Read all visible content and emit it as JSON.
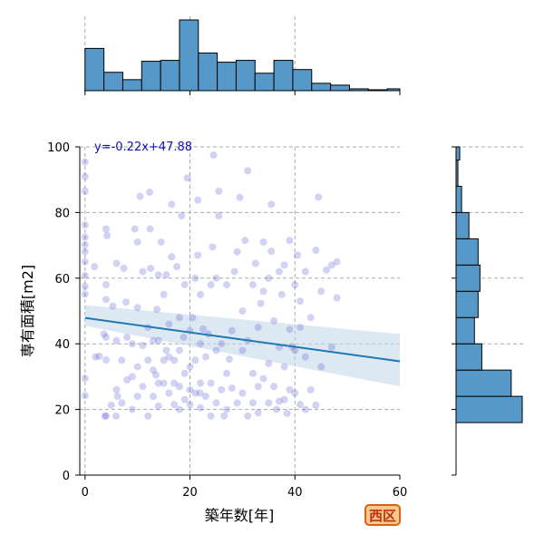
{
  "chart_data": {
    "type": "scatter",
    "title": "",
    "xlabel": "築年数[年]",
    "ylabel": "専有面積[m2]",
    "xlim": [
      -1,
      60
    ],
    "ylim": [
      0,
      100
    ],
    "xticks": [
      0,
      20,
      40,
      60
    ],
    "yticks": [
      0,
      20,
      40,
      60,
      80,
      100
    ],
    "grid": true,
    "regression": {
      "label": "y=-0.22x+47.88",
      "slope": -0.22,
      "intercept": 47.88,
      "ci_at_x0": [
        45.5,
        51.8
      ],
      "ci_at_x60": [
        27.0,
        43.0
      ]
    },
    "badge": "西区",
    "top_histogram": {
      "bin_edges": [
        0,
        3.6,
        7.2,
        10.8,
        14.4,
        18,
        21.6,
        25.2,
        28.8,
        32.4,
        36,
        39.6,
        43.2,
        46.8,
        50.4,
        54,
        57.6,
        60
      ],
      "counts": [
        46,
        20,
        12,
        32,
        33,
        77,
        41,
        31,
        33,
        19,
        33,
        23,
        8,
        6,
        2,
        1,
        2
      ]
    },
    "right_histogram": {
      "bin_edges": [
        16,
        24,
        32,
        40,
        48,
        56,
        64,
        72,
        80,
        88,
        96,
        100
      ],
      "counts": [
        36,
        30,
        14,
        10,
        12,
        13,
        12,
        7,
        3,
        1,
        2
      ]
    },
    "points": [
      [
        0,
        95.4
      ],
      [
        0,
        91
      ],
      [
        0,
        86.5
      ],
      [
        0,
        76.2
      ],
      [
        0,
        72.5
      ],
      [
        0,
        70.2
      ],
      [
        0,
        68.1
      ],
      [
        0,
        65
      ],
      [
        0,
        60.8
      ],
      [
        0,
        57.5
      ],
      [
        0,
        55.1
      ],
      [
        0,
        29.5
      ],
      [
        0,
        24.2
      ],
      [
        1.8,
        63.5
      ],
      [
        2,
        36
      ],
      [
        2.7,
        36.2
      ],
      [
        3.6,
        43
      ],
      [
        3.8,
        18
      ],
      [
        4,
        18
      ],
      [
        4,
        35.1
      ],
      [
        4,
        42
      ],
      [
        4,
        53.5
      ],
      [
        4,
        58
      ],
      [
        4,
        75
      ],
      [
        4.2,
        73
      ],
      [
        5,
        21.3
      ],
      [
        5.3,
        51.5
      ],
      [
        5.9,
        18
      ],
      [
        6,
        64.5
      ],
      [
        6,
        41
      ],
      [
        6,
        26
      ],
      [
        6.2,
        24
      ],
      [
        7,
        35
      ],
      [
        7,
        22
      ],
      [
        7.4,
        63
      ],
      [
        7.8,
        52.7
      ],
      [
        8,
        42
      ],
      [
        8,
        29
      ],
      [
        9,
        40
      ],
      [
        9,
        30
      ],
      [
        9,
        20
      ],
      [
        9.5,
        75
      ],
      [
        10,
        71
      ],
      [
        10,
        33
      ],
      [
        10,
        24
      ],
      [
        10,
        51
      ],
      [
        10.5,
        84.9
      ],
      [
        11,
        62
      ],
      [
        11,
        39.5
      ],
      [
        11,
        27
      ],
      [
        12,
        45
      ],
      [
        12,
        35
      ],
      [
        12,
        18
      ],
      [
        12.3,
        86.2
      ],
      [
        12.4,
        75
      ],
      [
        12.5,
        63
      ],
      [
        13,
        41
      ],
      [
        13,
        32
      ],
      [
        13,
        24
      ],
      [
        13.5,
        30.5
      ],
      [
        13.7,
        50.5
      ],
      [
        14,
        61
      ],
      [
        14,
        41
      ],
      [
        14,
        28
      ],
      [
        14,
        21
      ],
      [
        14.5,
        71
      ],
      [
        15,
        55
      ],
      [
        15,
        35
      ],
      [
        15,
        28
      ],
      [
        15.5,
        61
      ],
      [
        15.5,
        38
      ],
      [
        16,
        36
      ],
      [
        16,
        25
      ],
      [
        16,
        46
      ],
      [
        16.5,
        82.5
      ],
      [
        16.5,
        66.5
      ],
      [
        17,
        35
      ],
      [
        17,
        28
      ],
      [
        17,
        21.5
      ],
      [
        17.5,
        63.5
      ],
      [
        18,
        48
      ],
      [
        18,
        38
      ],
      [
        18,
        27
      ],
      [
        18,
        20
      ],
      [
        18.4,
        79
      ],
      [
        18.8,
        42
      ],
      [
        19,
        58
      ],
      [
        19,
        31
      ],
      [
        19,
        23
      ],
      [
        19.5,
        90.5
      ],
      [
        20,
        44
      ],
      [
        20,
        33
      ],
      [
        20,
        26
      ],
      [
        20,
        21.5
      ],
      [
        20.5,
        48
      ],
      [
        21,
        60
      ],
      [
        21,
        35
      ],
      [
        21,
        25
      ],
      [
        21.5,
        83.8
      ],
      [
        21.5,
        67
      ],
      [
        21.9,
        25
      ],
      [
        22,
        55
      ],
      [
        22,
        40
      ],
      [
        22,
        28
      ],
      [
        22,
        20.5
      ],
      [
        22.5,
        44.5
      ],
      [
        23,
        36
      ],
      [
        23,
        24
      ],
      [
        23.5,
        43
      ],
      [
        24,
        58
      ],
      [
        24,
        28
      ],
      [
        24,
        18
      ],
      [
        24.3,
        69.5
      ],
      [
        24.5,
        97.5
      ],
      [
        25,
        60
      ],
      [
        25,
        38
      ],
      [
        25,
        22
      ],
      [
        25.5,
        79
      ],
      [
        25.5,
        86.5
      ],
      [
        26,
        40
      ],
      [
        26,
        26
      ],
      [
        26.5,
        18
      ],
      [
        27,
        58
      ],
      [
        27,
        31
      ],
      [
        27,
        20
      ],
      [
        27.5,
        35.3
      ],
      [
        28,
        44
      ],
      [
        28,
        26.5
      ],
      [
        28.5,
        62
      ],
      [
        29,
        68
      ],
      [
        29,
        22
      ],
      [
        29.5,
        84.6
      ],
      [
        30,
        50
      ],
      [
        30,
        38
      ],
      [
        30,
        25
      ],
      [
        30.5,
        71.5
      ],
      [
        31,
        41
      ],
      [
        31,
        18
      ],
      [
        31,
        92.7
      ],
      [
        32,
        58
      ],
      [
        32,
        31
      ],
      [
        32,
        22
      ],
      [
        32.5,
        64.5
      ],
      [
        33,
        45
      ],
      [
        33,
        27
      ],
      [
        33,
        19
      ],
      [
        33.5,
        52.3
      ],
      [
        34,
        71
      ],
      [
        34,
        56
      ],
      [
        34,
        29.4
      ],
      [
        35,
        60
      ],
      [
        35,
        34
      ],
      [
        35,
        22
      ],
      [
        35.5,
        82.5
      ],
      [
        35.5,
        68.2
      ],
      [
        36,
        47
      ],
      [
        36,
        27
      ],
      [
        36.5,
        20
      ],
      [
        37,
        62
      ],
      [
        37,
        39
      ],
      [
        37,
        22.5
      ],
      [
        37.5,
        55
      ],
      [
        38,
        64
      ],
      [
        38,
        33
      ],
      [
        38,
        23
      ],
      [
        38.5,
        18.8
      ],
      [
        39,
        71.5
      ],
      [
        39,
        44.4
      ],
      [
        39,
        26
      ],
      [
        39.5,
        39.1
      ],
      [
        40,
        58
      ],
      [
        40,
        38
      ],
      [
        40,
        25
      ],
      [
        40.5,
        67
      ],
      [
        41,
        53
      ],
      [
        41,
        45
      ],
      [
        41,
        21.5
      ],
      [
        42,
        62
      ],
      [
        42,
        36
      ],
      [
        42,
        20
      ],
      [
        43,
        48
      ],
      [
        43,
        26
      ],
      [
        44,
        68.5
      ],
      [
        44,
        21.3
      ],
      [
        44.5,
        84.7
      ],
      [
        45,
        56
      ],
      [
        45,
        33
      ],
      [
        46,
        62.5
      ],
      [
        47,
        64
      ],
      [
        47,
        39
      ],
      [
        48,
        54
      ],
      [
        48,
        65
      ]
    ]
  }
}
